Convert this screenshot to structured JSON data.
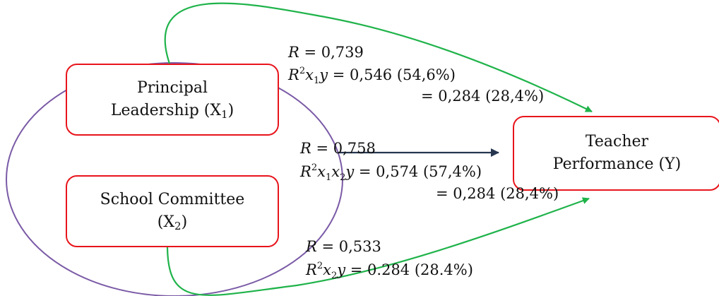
{
  "nodes": {
    "x1": {
      "line1": "Principal",
      "line2": "Leadership (X",
      "subscript": "1",
      "close": ")"
    },
    "x2": {
      "line1": "School Committee",
      "open": "(X",
      "subscript": "2",
      "close": ")"
    },
    "y": {
      "line1": "Teacher",
      "line2": "Performance (Y)"
    }
  },
  "stats": {
    "x1": {
      "r_value": "= 0,739",
      "r2_value": "= 0,546 (54,6%)",
      "contribution": "= 0,284 (28,4%)"
    },
    "combined": {
      "r_value": "= 0,758",
      "r2_value": "= 0,574 (57,4%)",
      "contribution": "= 0,284 (28,4%)"
    },
    "x2": {
      "r_value": "= 0,533",
      "r2_value": "= 0.284 (28.4%)"
    }
  },
  "colors": {
    "box_border": "#e8141c",
    "ellipse": "#7a5aa6",
    "green_arrow": "#1fb34a",
    "navy_arrow": "#26364f"
  }
}
